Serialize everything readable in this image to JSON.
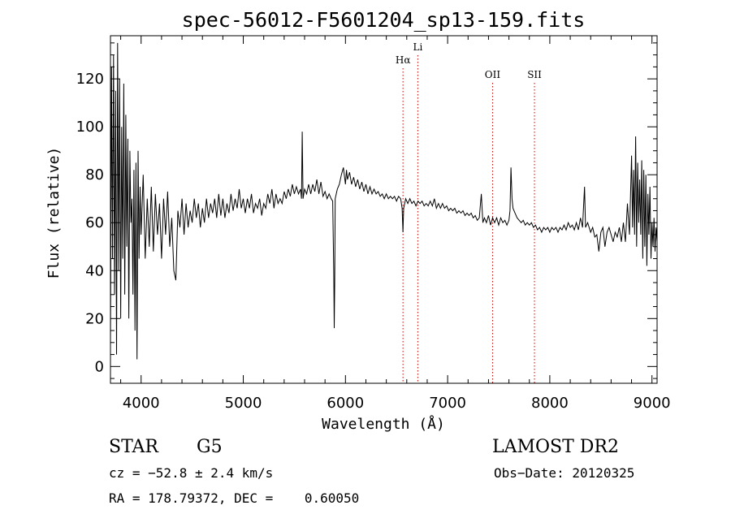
{
  "chart_data": {
    "type": "line",
    "title": "spec-56012-F5601204_sp13-159.fits",
    "xlabel": "Wavelength (Å)",
    "ylabel": "Flux (relative)",
    "xlim": [
      3700,
      9050
    ],
    "ylim": [
      -7,
      138
    ],
    "xticks": [
      4000,
      5000,
      6000,
      7000,
      8000,
      9000
    ],
    "yticks": [
      0,
      20,
      40,
      60,
      80,
      100,
      120
    ],
    "line_color": "#000000",
    "marker_color": "#cc0000",
    "series": [
      {
        "values": [
          [
            3700,
            10
          ],
          [
            3710,
            125
          ],
          [
            3720,
            45
          ],
          [
            3730,
            130
          ],
          [
            3740,
            30
          ],
          [
            3750,
            115
          ],
          [
            3760,
            5
          ],
          [
            3770,
            135
          ],
          [
            3780,
            40
          ],
          [
            3790,
            120
          ],
          [
            3800,
            20
          ],
          [
            3810,
            100
          ],
          [
            3820,
            45
          ],
          [
            3830,
            118
          ],
          [
            3840,
            30
          ],
          [
            3850,
            105
          ],
          [
            3860,
            50
          ],
          [
            3870,
            95
          ],
          [
            3880,
            20
          ],
          [
            3890,
            90
          ],
          [
            3900,
            60
          ],
          [
            3910,
            70
          ],
          [
            3920,
            30
          ],
          [
            3930,
            82
          ],
          [
            3940,
            15
          ],
          [
            3950,
            85
          ],
          [
            3960,
            3
          ],
          [
            3970,
            90
          ],
          [
            3980,
            45
          ],
          [
            3990,
            75
          ],
          [
            4000,
            55
          ],
          [
            4020,
            80
          ],
          [
            4040,
            45
          ],
          [
            4060,
            70
          ],
          [
            4080,
            50
          ],
          [
            4100,
            75
          ],
          [
            4120,
            48
          ],
          [
            4140,
            72
          ],
          [
            4160,
            55
          ],
          [
            4180,
            68
          ],
          [
            4200,
            45
          ],
          [
            4220,
            70
          ],
          [
            4240,
            55
          ],
          [
            4260,
            73
          ],
          [
            4280,
            50
          ],
          [
            4300,
            62
          ],
          [
            4320,
            40
          ],
          [
            4340,
            36
          ],
          [
            4360,
            65
          ],
          [
            4380,
            58
          ],
          [
            4400,
            70
          ],
          [
            4420,
            55
          ],
          [
            4440,
            68
          ],
          [
            4460,
            58
          ],
          [
            4480,
            65
          ],
          [
            4500,
            60
          ],
          [
            4520,
            70
          ],
          [
            4540,
            62
          ],
          [
            4560,
            68
          ],
          [
            4580,
            58
          ],
          [
            4600,
            66
          ],
          [
            4620,
            60
          ],
          [
            4640,
            70
          ],
          [
            4660,
            62
          ],
          [
            4680,
            68
          ],
          [
            4700,
            64
          ],
          [
            4720,
            70
          ],
          [
            4740,
            62
          ],
          [
            4760,
            72
          ],
          [
            4780,
            63
          ],
          [
            4800,
            70
          ],
          [
            4820,
            62
          ],
          [
            4840,
            68
          ],
          [
            4860,
            64
          ],
          [
            4880,
            72
          ],
          [
            4900,
            65
          ],
          [
            4920,
            70
          ],
          [
            4940,
            66
          ],
          [
            4960,
            74
          ],
          [
            4980,
            66
          ],
          [
            5000,
            70
          ],
          [
            5020,
            64
          ],
          [
            5040,
            70
          ],
          [
            5060,
            66
          ],
          [
            5080,
            72
          ],
          [
            5100,
            64
          ],
          [
            5120,
            68
          ],
          [
            5140,
            66
          ],
          [
            5160,
            70
          ],
          [
            5180,
            63
          ],
          [
            5200,
            68
          ],
          [
            5220,
            66
          ],
          [
            5240,
            72
          ],
          [
            5260,
            68
          ],
          [
            5280,
            74
          ],
          [
            5300,
            66
          ],
          [
            5320,
            72
          ],
          [
            5340,
            68
          ],
          [
            5360,
            70
          ],
          [
            5380,
            68
          ],
          [
            5400,
            73
          ],
          [
            5420,
            70
          ],
          [
            5440,
            74
          ],
          [
            5460,
            71
          ],
          [
            5480,
            76
          ],
          [
            5500,
            72
          ],
          [
            5520,
            75
          ],
          [
            5540,
            72
          ],
          [
            5560,
            74
          ],
          [
            5570,
            70
          ],
          [
            5577,
            98
          ],
          [
            5585,
            70
          ],
          [
            5600,
            74
          ],
          [
            5620,
            72
          ],
          [
            5640,
            76
          ],
          [
            5660,
            72
          ],
          [
            5680,
            76
          ],
          [
            5700,
            73
          ],
          [
            5720,
            78
          ],
          [
            5740,
            72
          ],
          [
            5760,
            77
          ],
          [
            5780,
            71
          ],
          [
            5800,
            73
          ],
          [
            5820,
            70
          ],
          [
            5840,
            72
          ],
          [
            5860,
            70
          ],
          [
            5875,
            69
          ],
          [
            5885,
            40
          ],
          [
            5890,
            16
          ],
          [
            5895,
            35
          ],
          [
            5900,
            70
          ],
          [
            5920,
            74
          ],
          [
            5940,
            76
          ],
          [
            5960,
            80
          ],
          [
            5980,
            83
          ],
          [
            6000,
            76
          ],
          [
            6010,
            82
          ],
          [
            6020,
            78
          ],
          [
            6040,
            81
          ],
          [
            6060,
            76
          ],
          [
            6080,
            79
          ],
          [
            6100,
            75
          ],
          [
            6120,
            78
          ],
          [
            6140,
            74
          ],
          [
            6160,
            77
          ],
          [
            6180,
            73
          ],
          [
            6200,
            76
          ],
          [
            6220,
            72
          ],
          [
            6240,
            75
          ],
          [
            6260,
            72
          ],
          [
            6280,
            74
          ],
          [
            6300,
            72
          ],
          [
            6320,
            73
          ],
          [
            6340,
            71
          ],
          [
            6360,
            72
          ],
          [
            6380,
            70
          ],
          [
            6400,
            72
          ],
          [
            6420,
            70
          ],
          [
            6440,
            71
          ],
          [
            6460,
            70
          ],
          [
            6480,
            71
          ],
          [
            6500,
            69
          ],
          [
            6520,
            71
          ],
          [
            6540,
            70
          ],
          [
            6555,
            66
          ],
          [
            6563,
            56
          ],
          [
            6570,
            66
          ],
          [
            6590,
            70
          ],
          [
            6610,
            68
          ],
          [
            6630,
            70
          ],
          [
            6650,
            68
          ],
          [
            6670,
            69
          ],
          [
            6690,
            67
          ],
          [
            6710,
            69
          ],
          [
            6730,
            68
          ],
          [
            6750,
            69
          ],
          [
            6770,
            67
          ],
          [
            6790,
            68
          ],
          [
            6810,
            67
          ],
          [
            6830,
            69
          ],
          [
            6850,
            67
          ],
          [
            6870,
            70
          ],
          [
            6890,
            66
          ],
          [
            6910,
            68
          ],
          [
            6930,
            66
          ],
          [
            6950,
            68
          ],
          [
            6970,
            66
          ],
          [
            6990,
            67
          ],
          [
            7010,
            65
          ],
          [
            7030,
            66
          ],
          [
            7050,
            65
          ],
          [
            7070,
            66
          ],
          [
            7090,
            64
          ],
          [
            7110,
            65
          ],
          [
            7130,
            64
          ],
          [
            7150,
            65
          ],
          [
            7170,
            63
          ],
          [
            7190,
            64
          ],
          [
            7210,
            63
          ],
          [
            7230,
            64
          ],
          [
            7250,
            62
          ],
          [
            7270,
            63
          ],
          [
            7290,
            61
          ],
          [
            7310,
            62
          ],
          [
            7330,
            72
          ],
          [
            7345,
            60
          ],
          [
            7360,
            62
          ],
          [
            7380,
            60
          ],
          [
            7400,
            63
          ],
          [
            7420,
            59
          ],
          [
            7440,
            62
          ],
          [
            7460,
            60
          ],
          [
            7480,
            62
          ],
          [
            7500,
            59
          ],
          [
            7520,
            62
          ],
          [
            7540,
            60
          ],
          [
            7560,
            61
          ],
          [
            7580,
            59
          ],
          [
            7600,
            61
          ],
          [
            7610,
            65
          ],
          [
            7620,
            83
          ],
          [
            7630,
            70
          ],
          [
            7640,
            66
          ],
          [
            7660,
            64
          ],
          [
            7680,
            62
          ],
          [
            7700,
            61
          ],
          [
            7720,
            60
          ],
          [
            7740,
            61
          ],
          [
            7760,
            59
          ],
          [
            7780,
            60
          ],
          [
            7800,
            59
          ],
          [
            7820,
            60
          ],
          [
            7840,
            58
          ],
          [
            7860,
            59
          ],
          [
            7880,
            57
          ],
          [
            7900,
            58
          ],
          [
            7920,
            56
          ],
          [
            7940,
            58
          ],
          [
            7960,
            57
          ],
          [
            7980,
            58
          ],
          [
            8000,
            56
          ],
          [
            8020,
            58
          ],
          [
            8040,
            57
          ],
          [
            8060,
            58
          ],
          [
            8080,
            56
          ],
          [
            8100,
            58
          ],
          [
            8120,
            57
          ],
          [
            8140,
            59
          ],
          [
            8160,
            57
          ],
          [
            8180,
            60
          ],
          [
            8200,
            58
          ],
          [
            8220,
            59
          ],
          [
            8240,
            57
          ],
          [
            8260,
            60
          ],
          [
            8280,
            57
          ],
          [
            8300,
            62
          ],
          [
            8320,
            58
          ],
          [
            8340,
            75
          ],
          [
            8350,
            58
          ],
          [
            8370,
            60
          ],
          [
            8400,
            56
          ],
          [
            8420,
            58
          ],
          [
            8440,
            54
          ],
          [
            8460,
            55
          ],
          [
            8480,
            48
          ],
          [
            8500,
            56
          ],
          [
            8520,
            58
          ],
          [
            8540,
            50
          ],
          [
            8560,
            56
          ],
          [
            8580,
            58
          ],
          [
            8600,
            55
          ],
          [
            8620,
            52
          ],
          [
            8640,
            56
          ],
          [
            8660,
            54
          ],
          [
            8680,
            58
          ],
          [
            8700,
            52
          ],
          [
            8720,
            60
          ],
          [
            8740,
            52
          ],
          [
            8760,
            68
          ],
          [
            8780,
            55
          ],
          [
            8800,
            88
          ],
          [
            8810,
            58
          ],
          [
            8820,
            82
          ],
          [
            8830,
            55
          ],
          [
            8840,
            96
          ],
          [
            8850,
            50
          ],
          [
            8860,
            85
          ],
          [
            8870,
            60
          ],
          [
            8880,
            78
          ],
          [
            8890,
            55
          ],
          [
            8900,
            86
          ],
          [
            8910,
            45
          ],
          [
            8920,
            82
          ],
          [
            8930,
            50
          ],
          [
            8940,
            80
          ],
          [
            8950,
            42
          ],
          [
            8960,
            72
          ],
          [
            8970,
            55
          ],
          [
            8980,
            75
          ],
          [
            8990,
            45
          ],
          [
            9000,
            60
          ],
          [
            9010,
            50
          ],
          [
            9020,
            62
          ],
          [
            9030,
            48
          ],
          [
            9040,
            58
          ],
          [
            9050,
            52
          ]
        ]
      }
    ],
    "lines": [
      {
        "label": "Hα",
        "x": 6563
      },
      {
        "label": "Li",
        "x": 6708
      },
      {
        "label": "OII",
        "x": 7440
      },
      {
        "label": "SII",
        "x": 7850
      }
    ]
  },
  "info": {
    "class": "STAR",
    "subclass": "G5",
    "survey": "LAMOST DR2",
    "cz": "cz = −52.8 ± 2.4 km/s",
    "obs_date": "Obs−Date: 20120325",
    "radec": "RA = 178.79372, DEC =    0.60050"
  }
}
